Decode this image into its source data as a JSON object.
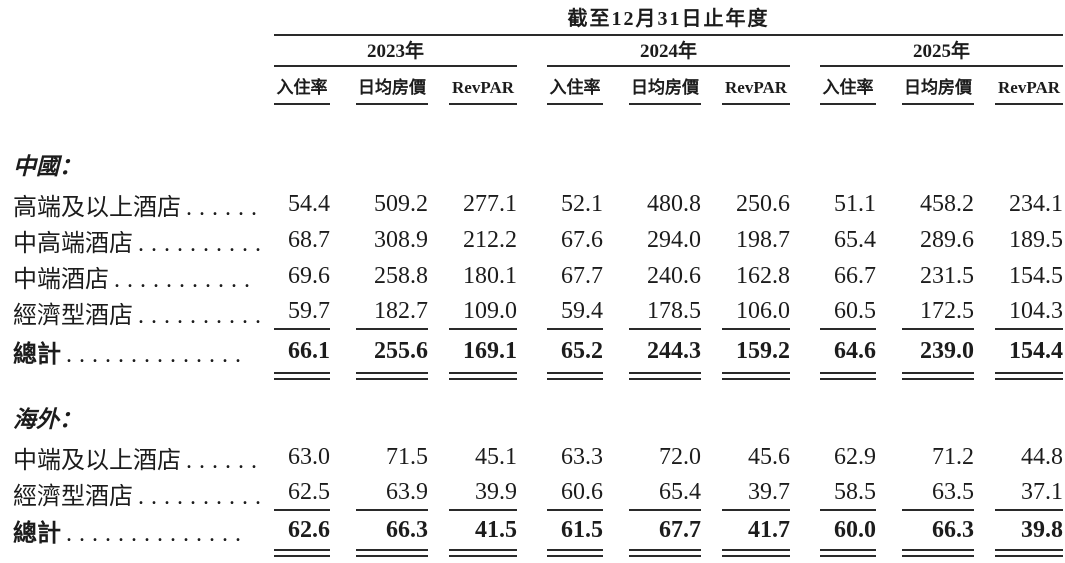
{
  "document": {
    "period_header": "截至12月31日止年度",
    "years": [
      "2023年",
      "2024年",
      "2025年"
    ],
    "metrics": [
      "入住率",
      "日均房價",
      "RevPAR"
    ],
    "sections": [
      {
        "title": "中國：",
        "rows": [
          {
            "label": "高端及以上酒店",
            "dots": "......",
            "values": [
              "54.4",
              "509.2",
              "277.1",
              "52.1",
              "480.8",
              "250.6",
              "51.1",
              "458.2",
              "234.1"
            ]
          },
          {
            "label": "中高端酒店",
            "dots": "..........",
            "values": [
              "68.7",
              "308.9",
              "212.2",
              "67.6",
              "294.0",
              "198.7",
              "65.4",
              "289.6",
              "189.5"
            ]
          },
          {
            "label": "中端酒店",
            "dots": "...........",
            "values": [
              "69.6",
              "258.8",
              "180.1",
              "67.7",
              "240.6",
              "162.8",
              "66.7",
              "231.5",
              "154.5"
            ]
          },
          {
            "label": "經濟型酒店",
            "dots": "..........",
            "values": [
              "59.7",
              "182.7",
              "109.0",
              "59.4",
              "178.5",
              "106.0",
              "60.5",
              "172.5",
              "104.3"
            ]
          }
        ],
        "total": {
          "label": "總計",
          "dots": "..............",
          "values": [
            "66.1",
            "255.6",
            "169.1",
            "65.2",
            "244.3",
            "159.2",
            "64.6",
            "239.0",
            "154.4"
          ]
        }
      },
      {
        "title": "海外：",
        "rows": [
          {
            "label": "中端及以上酒店",
            "dots": "......",
            "values": [
              "63.0",
              "71.5",
              "45.1",
              "63.3",
              "72.0",
              "45.6",
              "62.9",
              "71.2",
              "44.8"
            ]
          },
          {
            "label": "經濟型酒店",
            "dots": "..........",
            "values": [
              "62.5",
              "63.9",
              "39.9",
              "60.6",
              "65.4",
              "39.7",
              "58.5",
              "63.5",
              "37.1"
            ]
          }
        ],
        "total": {
          "label": "總計",
          "dots": "..............",
          "values": [
            "62.6",
            "66.3",
            "41.5",
            "61.5",
            "67.7",
            "41.7",
            "60.0",
            "66.3",
            "39.8"
          ]
        }
      }
    ]
  },
  "colors": {
    "background": "#ffffff",
    "text": "#1c1c1c",
    "rule": "#2a2a2a"
  }
}
